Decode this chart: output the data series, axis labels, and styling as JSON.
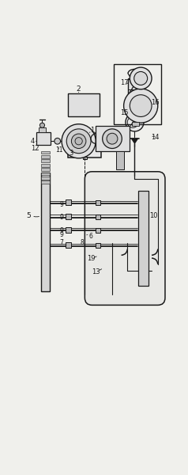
{
  "bg": "#f0f0ec",
  "lc": "#1a1a1a",
  "lw": 0.8,
  "fw": 2.38,
  "fh": 6.0,
  "dpi": 100
}
